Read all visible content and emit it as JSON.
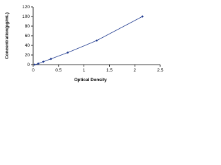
{
  "chart_data": {
    "type": "scatter",
    "x_label": "Optical Density",
    "y_label": "Concentration(pg/mL)",
    "x": [
      0.03,
      0.1,
      0.2,
      0.35,
      0.68,
      1.25,
      2.15
    ],
    "values": [
      0,
      2,
      6,
      12,
      25,
      50,
      100
    ],
    "color": "#1f3a8f",
    "line": true,
    "xlim": [
      0,
      2.5
    ],
    "xticks": [
      0,
      0.5,
      1,
      1.5,
      2,
      2.5
    ],
    "ylim": [
      0,
      120
    ],
    "yticks": [
      0,
      20,
      40,
      60,
      80,
      100,
      120
    ]
  }
}
